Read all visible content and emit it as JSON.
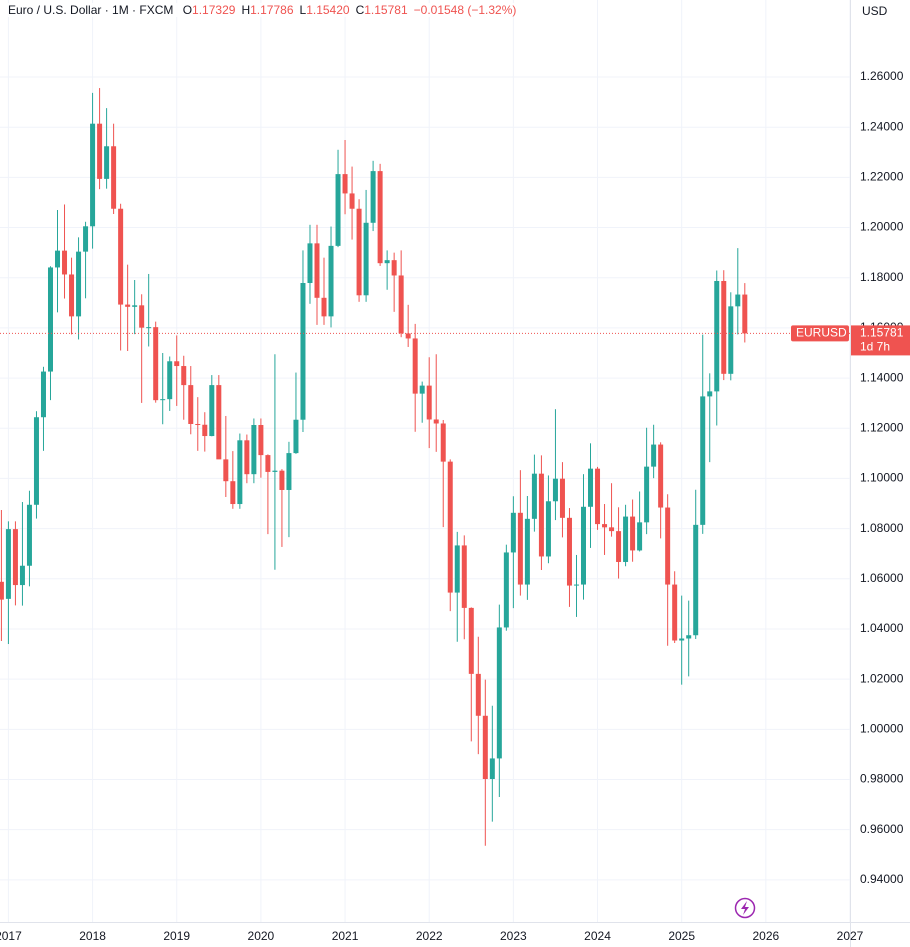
{
  "chart_data": {
    "type": "candlestick",
    "title": "Euro / U.S. Dollar · 1M · FXCM",
    "ohlc_legend": [
      {
        "key": "O",
        "value": "1.17329"
      },
      {
        "key": "H",
        "value": "1.17786"
      },
      {
        "key": "L",
        "value": "1.15420"
      },
      {
        "key": "C",
        "value": "1.15781"
      }
    ],
    "change": "−0.01548 (−1.32%)",
    "currency": "USD",
    "up_color": "#26a69a",
    "down_color": "#ef5350",
    "grid": true,
    "x": [
      "2016-12",
      "2017-01",
      "2017-02",
      "2017-03",
      "2017-04",
      "2017-05",
      "2017-06",
      "2017-07",
      "2017-08",
      "2017-09",
      "2017-10",
      "2017-11",
      "2017-12",
      "2018-01",
      "2018-02",
      "2018-03",
      "2018-04",
      "2018-05",
      "2018-06",
      "2018-07",
      "2018-08",
      "2018-09",
      "2018-10",
      "2018-11",
      "2018-12",
      "2019-01",
      "2019-02",
      "2019-03",
      "2019-04",
      "2019-05",
      "2019-06",
      "2019-07",
      "2019-08",
      "2019-09",
      "2019-10",
      "2019-11",
      "2019-12",
      "2020-01",
      "2020-02",
      "2020-03",
      "2020-04",
      "2020-05",
      "2020-06",
      "2020-07",
      "2020-08",
      "2020-09",
      "2020-10",
      "2020-11",
      "2020-12",
      "2021-01",
      "2021-02",
      "2021-03",
      "2021-04",
      "2021-05",
      "2021-06",
      "2021-07",
      "2021-08",
      "2021-09",
      "2021-10",
      "2021-11",
      "2021-12",
      "2022-01",
      "2022-02",
      "2022-03",
      "2022-04",
      "2022-05",
      "2022-06",
      "2022-07",
      "2022-08",
      "2022-09",
      "2022-10",
      "2022-11",
      "2022-12",
      "2023-01",
      "2023-02",
      "2023-03",
      "2023-04",
      "2023-05",
      "2023-06",
      "2023-07",
      "2023-08",
      "2023-09",
      "2023-10",
      "2023-11",
      "2023-12",
      "2024-01",
      "2024-02",
      "2024-03",
      "2024-04",
      "2024-05",
      "2024-06",
      "2024-07",
      "2024-08",
      "2024-09",
      "2024-10",
      "2024-11",
      "2024-12",
      "2025-01",
      "2025-02",
      "2025-03",
      "2025-04",
      "2025-05",
      "2025-06",
      "2025-07",
      "2025-08",
      "2025-09",
      "2025-10"
    ],
    "open": [
      1.0588,
      1.052,
      1.0798,
      1.0575,
      1.0652,
      1.0895,
      1.1244,
      1.1426,
      1.1841,
      1.1908,
      1.1813,
      1.1646,
      1.1904,
      1.2005,
      1.2414,
      1.2194,
      1.2324,
      1.2075,
      1.1693,
      1.1684,
      1.169,
      1.1601,
      1.1603,
      1.1312,
      1.1316,
      1.1467,
      1.1448,
      1.1372,
      1.1217,
      1.1214,
      1.1169,
      1.1372,
      1.1076,
      1.0989,
      1.0898,
      1.1152,
      1.1017,
      1.1213,
      1.1093,
      1.1026,
      1.1031,
      1.0954,
      1.1101,
      1.1234,
      1.1779,
      1.1937,
      1.172,
      1.1646,
      1.1927,
      1.2213,
      1.2136,
      1.2075,
      1.173,
      1.2019,
      1.2225,
      1.1858,
      1.187,
      1.1809,
      1.1578,
      1.1558,
      1.1338,
      1.137,
      1.1235,
      1.1219,
      1.1067,
      1.0545,
      1.0733,
      1.0484,
      1.0221,
      1.0054,
      0.9802,
      0.9884,
      1.0406,
      1.0705,
      1.0863,
      1.0577,
      1.0839,
      1.1019,
      1.0689,
      1.0909,
      1.0999,
      1.0843,
      1.0573,
      1.0577,
      1.0887,
      1.1039,
      1.0818,
      1.0805,
      1.079,
      1.0667,
      1.0848,
      1.0713,
      1.0825,
      1.1047,
      1.1135,
      1.0884,
      1.0577,
      1.0354,
      1.0362,
      1.0375,
      1.0815,
      1.1327,
      1.1347,
      1.1787,
      1.1417,
      1.1686,
      1.17329
    ],
    "high": [
      1.0874,
      1.0829,
      1.0829,
      1.0906,
      1.0951,
      1.1268,
      1.1445,
      1.1846,
      1.207,
      1.2092,
      1.188,
      1.1961,
      1.2023,
      1.2537,
      1.2556,
      1.2476,
      1.2414,
      1.2095,
      1.1852,
      1.1791,
      1.1734,
      1.1815,
      1.1625,
      1.15,
      1.1486,
      1.157,
      1.1489,
      1.1448,
      1.1324,
      1.1264,
      1.1412,
      1.1412,
      1.1249,
      1.1109,
      1.1179,
      1.1175,
      1.1239,
      1.1239,
      1.1096,
      1.1495,
      1.1037,
      1.1146,
      1.1422,
      1.1909,
      1.2011,
      1.2011,
      1.188,
      1.2004,
      1.231,
      1.2349,
      1.2243,
      1.2113,
      1.215,
      1.2266,
      1.2254,
      1.1909,
      1.19,
      1.1909,
      1.1692,
      1.1616,
      1.1386,
      1.1483,
      1.1495,
      1.1233,
      1.1076,
      1.0787,
      1.0773,
      1.0486,
      1.0369,
      1.0198,
      1.0094,
      1.0497,
      1.0736,
      1.0929,
      1.1033,
      1.093,
      1.1095,
      1.1092,
      1.1012,
      1.1276,
      1.1065,
      1.0882,
      1.0695,
      1.1017,
      1.114,
      1.1046,
      1.0898,
      1.0981,
      1.0885,
      1.0895,
      1.0916,
      1.0948,
      1.1202,
      1.1214,
      1.1144,
      1.0937,
      1.063,
      1.0533,
      1.0513,
      1.0955,
      1.1573,
      1.1419,
      1.1829,
      1.183,
      1.1742,
      1.1918,
      1.17786
    ],
    "low": [
      1.0352,
      1.034,
      1.0494,
      1.0493,
      1.057,
      1.084,
      1.111,
      1.1312,
      1.1662,
      1.1717,
      1.1574,
      1.1554,
      1.1718,
      1.1916,
      1.2153,
      1.2155,
      1.2054,
      1.151,
      1.1508,
      1.1575,
      1.1301,
      1.1526,
      1.1302,
      1.1216,
      1.1269,
      1.1289,
      1.1234,
      1.1176,
      1.111,
      1.1107,
      1.1168,
      1.1101,
      1.0926,
      1.0879,
      1.0879,
      1.0981,
      1.0981,
      1.1003,
      1.0778,
      1.0636,
      1.0727,
      1.0766,
      1.1098,
      1.1185,
      1.1696,
      1.1612,
      1.1612,
      1.1602,
      1.1922,
      1.2053,
      1.1952,
      1.1704,
      1.1704,
      1.1986,
      1.1847,
      1.1752,
      1.1664,
      1.1563,
      1.1524,
      1.1186,
      1.1222,
      1.1121,
      1.1106,
      1.0806,
      1.0471,
      1.0349,
      1.0359,
      0.9952,
      0.9901,
      0.9536,
      0.9632,
      0.973,
      1.0393,
      1.0483,
      1.0533,
      1.0516,
      1.0788,
      1.0635,
      1.0662,
      1.0834,
      1.0765,
      1.0488,
      1.0448,
      1.0517,
      1.0723,
      1.0795,
      1.0695,
      1.0768,
      1.0601,
      1.065,
      1.0668,
      1.0709,
      1.0778,
      1.1001,
      1.0761,
      1.0333,
      1.0344,
      1.0178,
      1.0211,
      1.036,
      1.0779,
      1.1065,
      1.1211,
      1.1392,
      1.1391,
      1.1574,
      1.1542
    ],
    "close": [
      1.0517,
      1.0798,
      1.0575,
      1.0652,
      1.0895,
      1.1244,
      1.1426,
      1.1841,
      1.1908,
      1.1813,
      1.1646,
      1.1904,
      1.2005,
      1.2414,
      1.2194,
      1.2324,
      1.2075,
      1.1693,
      1.1684,
      1.169,
      1.1601,
      1.1603,
      1.1312,
      1.1316,
      1.1467,
      1.1448,
      1.1372,
      1.1217,
      1.1214,
      1.1169,
      1.1372,
      1.1076,
      1.0989,
      1.0898,
      1.1152,
      1.1017,
      1.1213,
      1.1093,
      1.1026,
      1.1031,
      1.0954,
      1.1101,
      1.1234,
      1.1779,
      1.1937,
      1.172,
      1.1646,
      1.1927,
      1.2213,
      1.2136,
      1.2075,
      1.173,
      1.2019,
      1.2225,
      1.1858,
      1.187,
      1.1809,
      1.1578,
      1.1558,
      1.1338,
      1.137,
      1.1235,
      1.1219,
      1.1067,
      1.0545,
      1.0733,
      1.0484,
      1.0221,
      1.0054,
      0.9802,
      0.9884,
      1.0406,
      1.0705,
      1.0863,
      1.0577,
      1.0839,
      1.1019,
      1.0689,
      1.0909,
      1.0999,
      1.0843,
      1.0573,
      1.0577,
      1.0887,
      1.1039,
      1.0818,
      1.0805,
      1.079,
      1.0667,
      1.0848,
      1.0713,
      1.0825,
      1.1047,
      1.1135,
      1.0884,
      1.0577,
      1.0354,
      1.0362,
      1.0375,
      1.0815,
      1.1327,
      1.1347,
      1.1787,
      1.1417,
      1.1686,
      1.1733,
      1.15781
    ],
    "xlim": [
      2016.9,
      2027.0
    ],
    "xticks": [
      2017,
      2018,
      2019,
      2020,
      2021,
      2022,
      2023,
      2024,
      2025,
      2026,
      2027
    ],
    "ylim": [
      0.9232,
      1.2907
    ],
    "yticks": [
      {
        "value": 0.94,
        "label": "0.94000"
      },
      {
        "value": 0.96,
        "label": "0.96000"
      },
      {
        "value": 0.98,
        "label": "0.98000"
      },
      {
        "value": 1.0,
        "label": "1.00000"
      },
      {
        "value": 1.02,
        "label": "1.02000"
      },
      {
        "value": 1.04,
        "label": "1.04000"
      },
      {
        "value": 1.06,
        "label": "1.06000"
      },
      {
        "value": 1.08,
        "label": "1.08000"
      },
      {
        "value": 1.1,
        "label": "1.10000"
      },
      {
        "value": 1.12,
        "label": "1.12000"
      },
      {
        "value": 1.14,
        "label": "1.14000"
      },
      {
        "value": 1.16,
        "label": "1.16000"
      },
      {
        "value": 1.18,
        "label": "1.18000"
      },
      {
        "value": 1.2,
        "label": "1.20000"
      },
      {
        "value": 1.22,
        "label": "1.22000"
      },
      {
        "value": 1.24,
        "label": "1.24000"
      },
      {
        "value": 1.26,
        "label": "1.26000"
      }
    ],
    "price_line": {
      "symbol": "EURUSD",
      "value": 1.15781,
      "countdown": "1d 7h"
    }
  }
}
